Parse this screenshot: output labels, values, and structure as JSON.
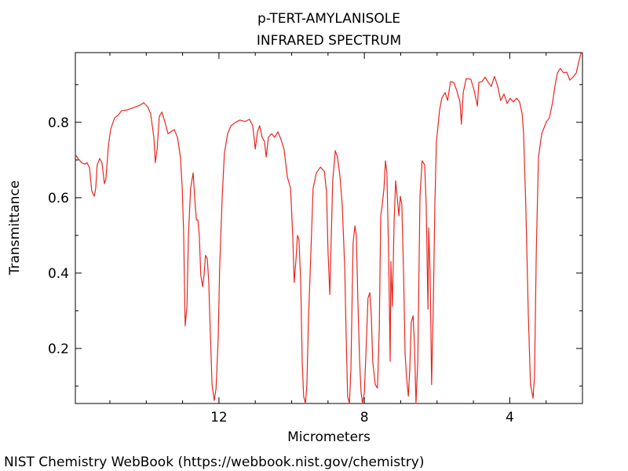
{
  "chart_data": {
    "type": "line",
    "title": "p-TERT-AMYLANISOLE",
    "subtitle": "INFRARED SPECTRUM",
    "x_label": "Micrometers",
    "y_label": "Transmittance",
    "source": "NIST Chemistry WebBook (https://webbook.nist.gov/chemistry)",
    "color": "#e8261f",
    "xlim": [
      15.95,
      2.0
    ],
    "ylim": [
      0.054,
      0.985
    ],
    "xticks": [
      12,
      8,
      4
    ],
    "xminorticks": [
      15,
      14,
      13,
      11,
      10,
      9,
      7,
      6,
      5,
      3
    ],
    "yticks": [
      0.2,
      0.4,
      0.6,
      0.8
    ],
    "yminorticks": [
      0.1,
      0.3,
      0.5,
      0.7,
      0.9
    ],
    "x": [
      15.95,
      15.86,
      15.78,
      15.69,
      15.63,
      15.56,
      15.5,
      15.43,
      15.39,
      15.35,
      15.28,
      15.22,
      15.15,
      15.11,
      15.04,
      14.98,
      14.87,
      14.78,
      14.68,
      14.52,
      14.35,
      14.18,
      14.07,
      13.96,
      13.88,
      13.79,
      13.75,
      13.7,
      13.64,
      13.57,
      13.49,
      13.4,
      13.32,
      13.23,
      13.14,
      13.06,
      13.01,
      12.97,
      12.93,
      12.88,
      12.84,
      12.78,
      12.71,
      12.67,
      12.62,
      12.58,
      12.54,
      12.5,
      12.45,
      12.41,
      12.37,
      12.32,
      12.28,
      12.24,
      12.19,
      12.13,
      12.08,
      12.02,
      11.98,
      11.91,
      11.85,
      11.76,
      11.67,
      11.54,
      11.42,
      11.29,
      11.16,
      11.07,
      11.0,
      10.94,
      10.88,
      10.81,
      10.75,
      10.7,
      10.64,
      10.55,
      10.47,
      10.38,
      10.29,
      10.21,
      10.12,
      10.03,
      9.97,
      9.93,
      9.88,
      9.84,
      9.8,
      9.75,
      9.71,
      9.67,
      9.62,
      9.58,
      9.54,
      9.47,
      9.41,
      9.32,
      9.21,
      9.1,
      9.04,
      9.0,
      8.95,
      8.91,
      8.87,
      8.8,
      8.74,
      8.67,
      8.61,
      8.54,
      8.5,
      8.46,
      8.41,
      8.37,
      8.31,
      8.26,
      8.22,
      8.18,
      8.13,
      8.09,
      8.05,
      8.0,
      7.94,
      7.9,
      7.85,
      7.81,
      7.77,
      7.7,
      7.64,
      7.59,
      7.55,
      7.51,
      7.46,
      7.42,
      7.38,
      7.33,
      7.29,
      7.27,
      7.23,
      7.18,
      7.14,
      7.1,
      7.05,
      7.01,
      6.97,
      6.92,
      6.88,
      6.84,
      6.79,
      6.75,
      6.71,
      6.66,
      6.62,
      6.58,
      6.53,
      6.47,
      6.41,
      6.34,
      6.3,
      6.25,
      6.23,
      6.19,
      6.15,
      6.1,
      6.06,
      6.02,
      5.93,
      5.87,
      5.78,
      5.71,
      5.63,
      5.54,
      5.46,
      5.37,
      5.33,
      5.28,
      5.2,
      5.07,
      4.98,
      4.89,
      4.85,
      4.76,
      4.68,
      4.59,
      4.51,
      4.42,
      4.33,
      4.25,
      4.16,
      4.07,
      3.99,
      3.9,
      3.81,
      3.73,
      3.66,
      3.62,
      3.56,
      3.49,
      3.43,
      3.36,
      3.32,
      3.27,
      3.21,
      3.12,
      2.99,
      2.91,
      2.82,
      2.76,
      2.69,
      2.61,
      2.52,
      2.43,
      2.35,
      2.26,
      2.17,
      2.11,
      2.04,
      2.0
    ],
    "values": [
      0.714,
      0.702,
      0.693,
      0.689,
      0.693,
      0.679,
      0.618,
      0.604,
      0.625,
      0.687,
      0.704,
      0.693,
      0.637,
      0.65,
      0.739,
      0.781,
      0.812,
      0.818,
      0.831,
      0.833,
      0.839,
      0.845,
      0.852,
      0.841,
      0.823,
      0.76,
      0.693,
      0.729,
      0.816,
      0.827,
      0.802,
      0.77,
      0.775,
      0.781,
      0.76,
      0.708,
      0.625,
      0.5,
      0.26,
      0.312,
      0.5,
      0.625,
      0.666,
      0.604,
      0.541,
      0.541,
      0.5,
      0.395,
      0.364,
      0.395,
      0.447,
      0.437,
      0.375,
      0.25,
      0.104,
      0.062,
      0.093,
      0.229,
      0.416,
      0.604,
      0.718,
      0.77,
      0.791,
      0.8,
      0.806,
      0.802,
      0.808,
      0.791,
      0.729,
      0.775,
      0.791,
      0.76,
      0.75,
      0.708,
      0.76,
      0.77,
      0.76,
      0.775,
      0.754,
      0.729,
      0.656,
      0.625,
      0.5,
      0.375,
      0.437,
      0.5,
      0.489,
      0.375,
      0.166,
      0.073,
      0.054,
      0.104,
      0.27,
      0.458,
      0.625,
      0.666,
      0.681,
      0.67,
      0.614,
      0.458,
      0.343,
      0.5,
      0.645,
      0.725,
      0.708,
      0.656,
      0.583,
      0.416,
      0.229,
      0.073,
      0.054,
      0.145,
      0.479,
      0.525,
      0.5,
      0.333,
      0.166,
      0.083,
      0.054,
      0.083,
      0.229,
      0.333,
      0.348,
      0.291,
      0.166,
      0.104,
      0.095,
      0.25,
      0.552,
      0.579,
      0.625,
      0.698,
      0.666,
      0.437,
      0.166,
      0.431,
      0.312,
      0.541,
      0.645,
      0.604,
      0.552,
      0.604,
      0.583,
      0.395,
      0.187,
      0.125,
      0.073,
      0.145,
      0.27,
      0.287,
      0.208,
      0.054,
      0.166,
      0.604,
      0.698,
      0.687,
      0.583,
      0.304,
      0.52,
      0.395,
      0.104,
      0.333,
      0.583,
      0.745,
      0.833,
      0.864,
      0.879,
      0.858,
      0.908,
      0.906,
      0.885,
      0.854,
      0.795,
      0.879,
      0.916,
      0.914,
      0.885,
      0.843,
      0.906,
      0.908,
      0.92,
      0.906,
      0.895,
      0.922,
      0.895,
      0.858,
      0.875,
      0.85,
      0.864,
      0.854,
      0.864,
      0.854,
      0.823,
      0.77,
      0.583,
      0.291,
      0.104,
      0.068,
      0.125,
      0.458,
      0.708,
      0.77,
      0.802,
      0.812,
      0.854,
      0.895,
      0.931,
      0.943,
      0.931,
      0.933,
      0.912,
      0.92,
      0.931,
      0.958,
      0.983,
      0.985
    ]
  }
}
